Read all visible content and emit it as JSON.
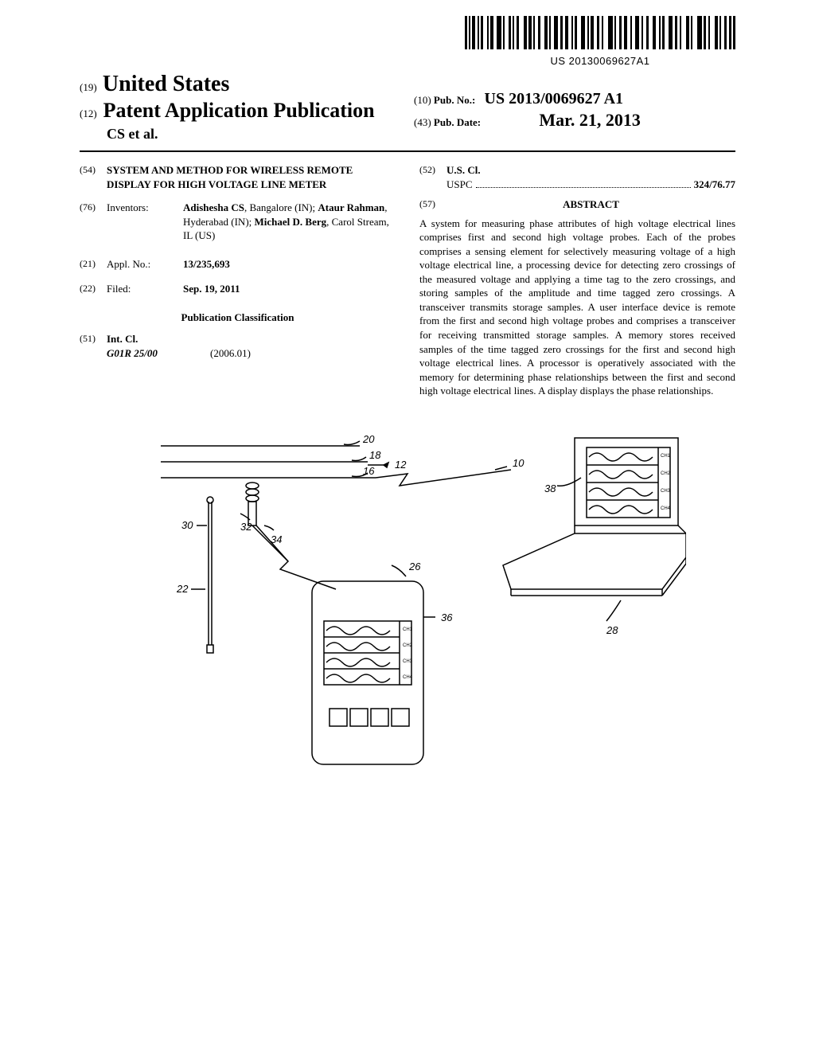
{
  "barcode_text": "US 20130069627A1",
  "header": {
    "code19": "(19)",
    "country": "United States",
    "code12": "(12)",
    "pub_type": "Patent Application Publication",
    "authors_short": "CS et al.",
    "code10": "(10)",
    "pubno_label": "Pub. No.:",
    "pubno": "US 2013/0069627 A1",
    "code43": "(43)",
    "pubdate_label": "Pub. Date:",
    "pubdate": "Mar. 21, 2013"
  },
  "left": {
    "code54": "(54)",
    "title": "SYSTEM AND METHOD FOR WIRELESS REMOTE DISPLAY FOR HIGH VOLTAGE LINE METER",
    "code76": "(76)",
    "inventors_label": "Inventors:",
    "inventors": "Adishesha CS, Bangalore (IN); Ataur Rahman, Hyderabad (IN); Michael D. Berg, Carol Stream, IL (US)",
    "code21": "(21)",
    "applno_label": "Appl. No.:",
    "applno": "13/235,693",
    "code22": "(22)",
    "filed_label": "Filed:",
    "filed": "Sep. 19, 2011",
    "pubclass_heading": "Publication Classification",
    "code51": "(51)",
    "intcl_label": "Int. Cl.",
    "intcl_code": "G01R 25/00",
    "intcl_year": "(2006.01)"
  },
  "right": {
    "code52": "(52)",
    "uscl_label": "U.S. Cl.",
    "uspc_label": "USPC",
    "uspc_code": "324/76.77",
    "code57": "(57)",
    "abstract_label": "ABSTRACT",
    "abstract": "A system for measuring phase attributes of high voltage electrical lines comprises first and second high voltage probes. Each of the probes comprises a sensing element for selectively measuring voltage of a high voltage electrical line, a processing device for detecting zero crossings of the measured voltage and applying a time tag to the zero crossings, and storing samples of the amplitude and time tagged zero crossings. A transceiver transmits storage samples. A user interface device is remote from the first and second high voltage probes and comprises a transceiver for receiving transmitted storage samples. A memory stores received samples of the time tagged zero crossings for the first and second high voltage electrical lines. A processor is operatively associated with the memory for determining phase relationships between the first and second high voltage electrical lines. A display displays the phase relationships."
  },
  "figure": {
    "labels": {
      "r10": "10",
      "r12": "12",
      "r16": "16",
      "r18": "18",
      "r20": "20",
      "r22": "22",
      "r26": "26",
      "r28": "28",
      "r30": "30",
      "r32": "32",
      "r34": "34",
      "r36": "36",
      "r38": "38"
    },
    "ch": {
      "c1": "CH1",
      "c2": "CH2",
      "c3": "CH3",
      "c4": "CH4"
    }
  }
}
